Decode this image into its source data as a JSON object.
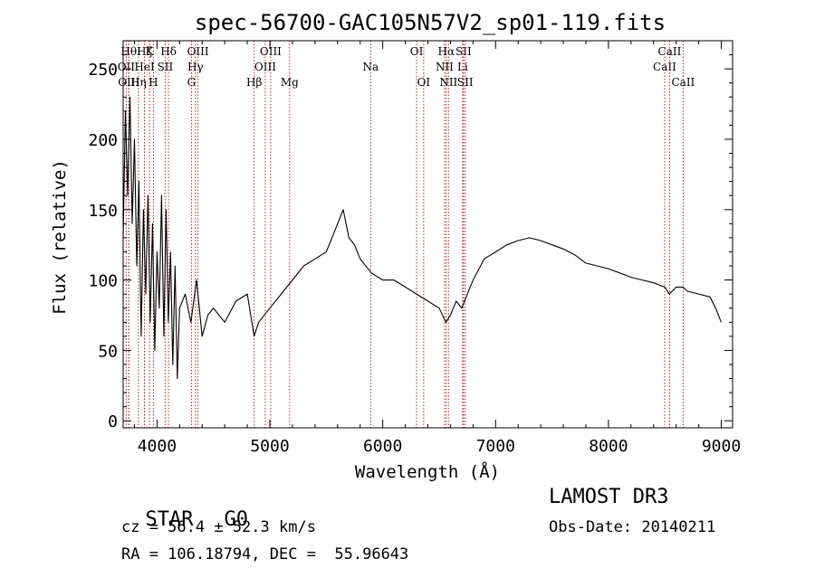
{
  "chart_data": {
    "type": "line",
    "title": "spec-56700-GAC105N57V2_sp01-119.fits",
    "xlabel": "Wavelength (Å)",
    "ylabel": "Flux (relative)",
    "xlim": [
      3700,
      9100
    ],
    "ylim": [
      -5,
      270
    ],
    "x_ticks": [
      4000,
      5000,
      6000,
      7000,
      8000,
      9000
    ],
    "x_tick_labels": [
      "4000",
      "5000",
      "6000",
      "7000",
      "8000",
      "9000"
    ],
    "y_ticks": [
      0,
      50,
      100,
      150,
      200,
      250
    ],
    "y_tick_labels": [
      "0",
      "50",
      "100",
      "150",
      "200",
      "250"
    ],
    "grid": false,
    "series": [
      {
        "name": "flux",
        "x": [
          3700,
          3720,
          3740,
          3760,
          3780,
          3800,
          3820,
          3840,
          3860,
          3880,
          3900,
          3920,
          3940,
          3960,
          3980,
          4000,
          4020,
          4040,
          4060,
          4080,
          4100,
          4120,
          4140,
          4160,
          4180,
          4200,
          4250,
          4300,
          4350,
          4400,
          4450,
          4500,
          4600,
          4700,
          4800,
          4860,
          4900,
          5000,
          5100,
          5200,
          5300,
          5400,
          5500,
          5550,
          5600,
          5650,
          5700,
          5750,
          5800,
          5900,
          6000,
          6100,
          6200,
          6300,
          6400,
          6500,
          6560,
          6600,
          6650,
          6700,
          6750,
          6800,
          6900,
          7000,
          7100,
          7200,
          7300,
          7400,
          7500,
          7600,
          7700,
          7800,
          7900,
          8000,
          8100,
          8200,
          8300,
          8400,
          8500,
          8540,
          8600,
          8660,
          8700,
          8800,
          8900,
          8950,
          9000
        ],
        "values": [
          130,
          220,
          160,
          230,
          140,
          200,
          110,
          170,
          60,
          150,
          90,
          160,
          70,
          140,
          50,
          120,
          80,
          160,
          60,
          150,
          70,
          120,
          40,
          110,
          30,
          80,
          90,
          70,
          100,
          60,
          75,
          80,
          70,
          85,
          90,
          60,
          70,
          80,
          90,
          100,
          110,
          115,
          120,
          130,
          140,
          150,
          130,
          125,
          115,
          105,
          100,
          100,
          95,
          90,
          85,
          80,
          70,
          75,
          85,
          80,
          90,
          100,
          115,
          120,
          125,
          128,
          130,
          128,
          125,
          122,
          118,
          112,
          110,
          108,
          105,
          102,
          100,
          98,
          95,
          90,
          95,
          95,
          92,
          90,
          88,
          80,
          70
        ]
      }
    ],
    "line_colors": {
      "spectrum": "#000000",
      "lines": "#aa1111"
    },
    "spectral_lines": [
      {
        "label": "OII",
        "wavelength": 3727,
        "row": 1
      },
      {
        "label": "Hθ",
        "wavelength": 3750,
        "row": 0
      },
      {
        "label": "OIII",
        "wavelength": 3750,
        "row": 2
      },
      {
        "label": "Hη",
        "wavelength": 3835,
        "row": 2
      },
      {
        "label": "Hζ",
        "wavelength": 3889,
        "row": 0
      },
      {
        "label": "HeI",
        "wavelength": 3889,
        "row": 1
      },
      {
        "label": "K",
        "wavelength": 3934,
        "row": 0
      },
      {
        "label": "H",
        "wavelength": 3968,
        "row": 2
      },
      {
        "label": "SII",
        "wavelength": 4072,
        "row": 1
      },
      {
        "label": "Hδ",
        "wavelength": 4102,
        "row": 0
      },
      {
        "label": "Hγ",
        "wavelength": 4340,
        "row": 1
      },
      {
        "label": "G",
        "wavelength": 4305,
        "row": 2
      },
      {
        "label": "OIII",
        "wavelength": 4363,
        "row": 0
      },
      {
        "label": "Hβ",
        "wavelength": 4861,
        "row": 2
      },
      {
        "label": "OIII",
        "wavelength": 4959,
        "row": 1
      },
      {
        "label": "OIII",
        "wavelength": 5007,
        "row": 0
      },
      {
        "label": "Mg",
        "wavelength": 5175,
        "row": 2
      },
      {
        "label": "Na",
        "wavelength": 5893,
        "row": 1
      },
      {
        "label": "OI",
        "wavelength": 6300,
        "row": 0
      },
      {
        "label": "OI",
        "wavelength": 6363,
        "row": 2
      },
      {
        "label": "NII",
        "wavelength": 6548,
        "row": 1
      },
      {
        "label": "Hα",
        "wavelength": 6563,
        "row": 0
      },
      {
        "label": "NII",
        "wavelength": 6583,
        "row": 2
      },
      {
        "label": "Li",
        "wavelength": 6708,
        "row": 1
      },
      {
        "label": "SII",
        "wavelength": 6716,
        "row": 0
      },
      {
        "label": "SII",
        "wavelength": 6731,
        "row": 2
      },
      {
        "label": "CaII",
        "wavelength": 8498,
        "row": 1
      },
      {
        "label": "CaII",
        "wavelength": 8542,
        "row": 0
      },
      {
        "label": "CaII",
        "wavelength": 8662,
        "row": 2
      }
    ]
  },
  "info": {
    "class": "STAR",
    "subclass": "G0",
    "survey": "LAMOST DR3",
    "redshift": "cz = 56.4 ± 52.3 km/s",
    "obs_date": "Obs-Date: 20140211",
    "coords": "RA = 106.18794, DEC =  55.96643"
  }
}
